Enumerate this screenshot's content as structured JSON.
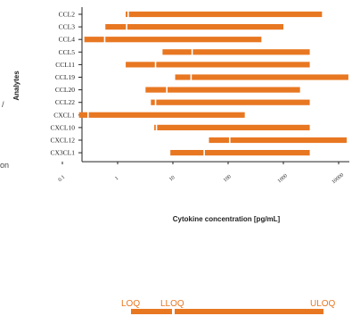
{
  "chart_data": {
    "type": "bar",
    "orientation": "horizontal",
    "scale": "log",
    "title": "",
    "xlabel": "Cytokine concentration [pg/mL]",
    "ylabel": "Analytes",
    "xlim": [
      0.1,
      20000
    ],
    "xticks": [
      "0.1",
      "1",
      "10",
      "100",
      "1000",
      "10000"
    ],
    "categories": [
      "CCL2",
      "CCL3",
      "CCL4",
      "CCL5",
      "CCL11",
      "CCL19",
      "CCL20",
      "CCL22",
      "CXCL1",
      "CXCL10",
      "CXCL12",
      "CX3CL1"
    ],
    "series": [
      {
        "name": "",
        "color": "#E87722",
        "loq": [
          1.4,
          0.6,
          0.25,
          6.5,
          1.4,
          11,
          3.2,
          4,
          0.2,
          4.6,
          45,
          9
        ],
        "lloq": [
          1.6,
          1.5,
          0.6,
          23,
          5,
          22,
          8,
          5,
          0.3,
          5.2,
          110,
          38
        ],
        "uloq": [
          5000,
          1000,
          400,
          3000,
          3000,
          15000,
          2000,
          3000,
          200,
          3000,
          14000,
          3000
        ]
      }
    ],
    "legend": {
      "position": "bottom",
      "labels": [
        "LOQ",
        "LLOQ",
        "ULOQ"
      ]
    }
  },
  "edge_text": {
    "left_fragment_1": "/",
    "left_fragment_2": "on"
  }
}
